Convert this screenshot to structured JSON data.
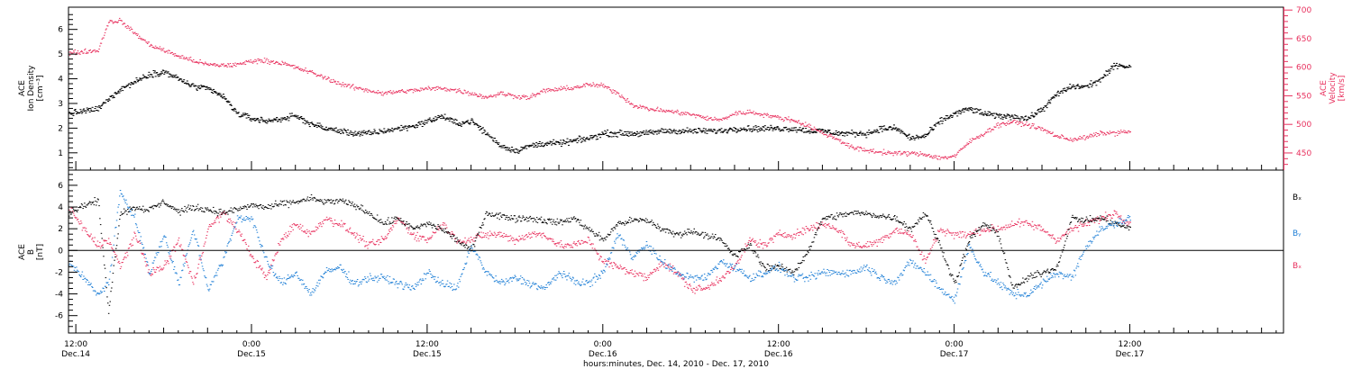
{
  "colors": {
    "black": "#000000",
    "pink": "#e8315e",
    "blue": "#1f7fd6",
    "axis": "#000000"
  },
  "xaxis": {
    "label": "hours:minutes, Dec. 14, 2010 - Dec. 17, 2010",
    "hours_range": [
      11.5,
      94.5
    ],
    "ticks": [
      {
        "hour": 12,
        "time": "12:00",
        "date": "Dec.14"
      },
      {
        "hour": 24,
        "time": "0:00",
        "date": "Dec.15"
      },
      {
        "hour": 36,
        "time": "12:00",
        "date": "Dec.15"
      },
      {
        "hour": 48,
        "time": "0:00",
        "date": "Dec.16"
      },
      {
        "hour": 60,
        "time": "12:00",
        "date": "Dec.16"
      },
      {
        "hour": 72,
        "time": "0:00",
        "date": "Dec.17"
      },
      {
        "hour": 84,
        "time": "12:00",
        "date": "Dec.17"
      }
    ]
  },
  "panel1": {
    "left_label": [
      "ACE",
      "Ion Density",
      "[cm⁻³]"
    ],
    "right_label": [
      "ACE",
      "Velocity",
      "[km/s]"
    ],
    "left_ticks": [
      "1",
      "2",
      "3",
      "4",
      "5",
      "6"
    ],
    "right_ticks": [
      "450",
      "500",
      "550",
      "600",
      "650",
      "700"
    ]
  },
  "panel2": {
    "left_label": [
      "ACE",
      "B",
      "[nT]"
    ],
    "left_ticks": [
      "-6",
      "-4",
      "-2",
      "0",
      "2",
      "4",
      "6"
    ],
    "legend": [
      "Bₓ",
      "Bᵧ",
      "Bₓ"
    ]
  },
  "chart_data": [
    {
      "type": "scatter",
      "title": "",
      "xlabel": "hours:minutes, Dec. 14, 2010 - Dec. 17, 2010",
      "x_units": "hours since Dec. 14, 2010 00:00",
      "ylim_left": [
        0.3,
        6.9
      ],
      "ylim_right": [
        420,
        705
      ],
      "series": [
        {
          "name": "Ion Density",
          "axis": "left",
          "color": "#000000",
          "x": [
            11.5,
            12.5,
            13.5,
            14.2,
            15,
            16,
            17,
            18,
            19,
            20,
            21,
            22,
            23,
            24,
            25,
            26,
            27,
            28,
            29,
            30,
            31,
            32,
            33,
            34,
            35,
            36,
            37,
            38,
            39,
            40,
            41,
            42,
            43,
            44,
            45,
            46,
            47,
            48,
            49,
            50,
            51,
            52,
            53,
            54,
            55,
            56,
            57,
            58,
            59,
            60,
            61,
            62,
            63,
            64,
            65,
            66,
            67,
            68,
            69,
            70,
            71,
            72,
            73,
            74,
            75,
            76,
            77,
            78,
            79,
            80,
            81,
            82,
            83,
            84
          ],
          "values": [
            2.6,
            2.7,
            2.8,
            3.2,
            3.6,
            3.9,
            4.2,
            4.3,
            4.0,
            3.7,
            3.6,
            3.3,
            2.6,
            2.4,
            2.3,
            2.4,
            2.5,
            2.2,
            2.0,
            1.9,
            1.8,
            1.8,
            1.9,
            2.0,
            2.1,
            2.3,
            2.5,
            2.2,
            2.3,
            1.8,
            1.3,
            1.1,
            1.3,
            1.4,
            1.4,
            1.5,
            1.6,
            1.8,
            1.8,
            1.8,
            1.8,
            1.9,
            1.9,
            1.9,
            1.9,
            1.9,
            2.0,
            2.0,
            2.0,
            2.0,
            2.0,
            1.9,
            1.9,
            1.8,
            1.8,
            1.8,
            2.0,
            2.0,
            1.6,
            1.7,
            2.3,
            2.6,
            2.8,
            2.6,
            2.5,
            2.5,
            2.4,
            2.8,
            3.4,
            3.7,
            3.7,
            4.0,
            4.6,
            4.5
          ]
        },
        {
          "name": "Velocity",
          "axis": "right",
          "color": "#e8315e",
          "x": [
            11.5,
            12.5,
            13.5,
            14.2,
            15,
            16,
            17,
            18,
            19,
            20,
            21,
            22,
            23,
            24,
            25,
            26,
            27,
            28,
            29,
            30,
            31,
            32,
            33,
            34,
            35,
            36,
            37,
            38,
            39,
            40,
            41,
            42,
            43,
            44,
            45,
            46,
            47,
            48,
            49,
            50,
            51,
            52,
            53,
            54,
            55,
            56,
            57,
            58,
            59,
            60,
            61,
            62,
            63,
            64,
            65,
            66,
            67,
            68,
            69,
            70,
            71,
            72,
            73,
            74,
            75,
            76,
            77,
            78,
            79,
            80,
            81,
            82,
            83,
            84
          ],
          "values": [
            625,
            628,
            630,
            680,
            682,
            660,
            640,
            630,
            620,
            612,
            605,
            604,
            605,
            612,
            612,
            608,
            600,
            592,
            582,
            572,
            565,
            560,
            555,
            558,
            560,
            563,
            564,
            560,
            555,
            548,
            555,
            550,
            548,
            560,
            562,
            565,
            570,
            568,
            555,
            535,
            528,
            525,
            522,
            518,
            512,
            508,
            520,
            522,
            518,
            512,
            508,
            498,
            485,
            475,
            460,
            455,
            452,
            450,
            450,
            448,
            442,
            445,
            470,
            485,
            500,
            505,
            500,
            492,
            480,
            474,
            478,
            485,
            486,
            488
          ]
        }
      ]
    },
    {
      "type": "scatter",
      "title": "",
      "xlabel": "hours:minutes, Dec. 14, 2010 - Dec. 17, 2010",
      "x_units": "hours since Dec. 14, 2010 00:00",
      "ylabel": "ACE B [nT]",
      "ylim": [
        -7.6,
        7.4
      ],
      "series": [
        {
          "name": "Bₓ",
          "color": "#000000",
          "x": [
            11.5,
            12.5,
            13.5,
            14.2,
            15,
            16,
            17,
            18,
            19,
            20,
            21,
            22,
            23,
            24,
            25,
            26,
            27,
            28,
            29,
            30,
            31,
            32,
            33,
            34,
            35,
            36,
            37,
            38,
            39,
            40,
            41,
            42,
            43,
            44,
            45,
            46,
            47,
            48,
            49,
            50,
            51,
            52,
            53,
            54,
            55,
            56,
            57,
            58,
            59,
            60,
            61,
            62,
            63,
            64,
            65,
            66,
            67,
            68,
            69,
            70,
            71,
            72,
            73,
            74,
            75,
            76,
            77,
            78,
            79,
            80,
            81,
            82,
            83,
            84
          ],
          "values": [
            3.5,
            4.2,
            4.6,
            -5.5,
            3.5,
            4.0,
            3.8,
            4.5,
            3.6,
            4.0,
            3.8,
            3.5,
            3.8,
            4.2,
            4.0,
            4.3,
            4.5,
            4.8,
            4.5,
            4.6,
            4.2,
            3.5,
            2.5,
            3.0,
            2.0,
            2.5,
            2.0,
            1.0,
            0.0,
            3.5,
            3.2,
            3.0,
            3.0,
            2.8,
            2.6,
            3.0,
            2.0,
            1.0,
            2.5,
            2.8,
            2.8,
            2.0,
            1.5,
            1.8,
            1.5,
            1.0,
            -0.5,
            0.5,
            -1.5,
            -1.5,
            -2.0,
            0.0,
            3.0,
            3.2,
            3.5,
            3.4,
            3.2,
            3.0,
            2.0,
            3.5,
            0.5,
            -3.0,
            1.0,
            2.5,
            1.5,
            -3.5,
            -2.5,
            -2.0,
            -1.5,
            3.0,
            2.8,
            3.0,
            2.5,
            2.0
          ]
        },
        {
          "name": "Bᵧ",
          "color": "#1f7fd6",
          "x": [
            11.5,
            12.5,
            13.5,
            14.2,
            15,
            16,
            17,
            18,
            19,
            20,
            21,
            22,
            23,
            24,
            25,
            26,
            27,
            28,
            29,
            30,
            31,
            32,
            33,
            34,
            35,
            36,
            37,
            38,
            39,
            40,
            41,
            42,
            43,
            44,
            45,
            46,
            47,
            48,
            49,
            50,
            51,
            52,
            53,
            54,
            55,
            56,
            57,
            58,
            59,
            60,
            61,
            62,
            63,
            64,
            65,
            66,
            67,
            68,
            69,
            70,
            71,
            72,
            73,
            74,
            75,
            76,
            77,
            78,
            79,
            80,
            81,
            82,
            83,
            84
          ],
          "values": [
            -1.0,
            -2.5,
            -4.0,
            -3.0,
            5.5,
            3.0,
            -2.0,
            1.5,
            -3.0,
            2.0,
            -3.5,
            -1.0,
            3.0,
            3.0,
            -1.0,
            -3.0,
            -2.0,
            -4.0,
            -2.0,
            -1.5,
            -3.0,
            -2.5,
            -2.5,
            -3.0,
            -3.5,
            -2.0,
            -3.0,
            -3.5,
            0.5,
            -2.0,
            -3.0,
            -2.5,
            -3.0,
            -3.5,
            -2.0,
            -2.8,
            -3.0,
            -2.0,
            1.5,
            -0.5,
            0.5,
            -1.0,
            -2.0,
            -2.5,
            -2.5,
            -1.0,
            -1.5,
            -2.5,
            -2.0,
            -1.5,
            -2.5,
            -2.5,
            -2.0,
            -2.0,
            -2.0,
            -1.5,
            -2.5,
            -2.8,
            -1.0,
            -2.0,
            -3.5,
            -4.5,
            0.5,
            -2.0,
            -3.0,
            -4.0,
            -4.0,
            -3.0,
            -2.0,
            -2.5,
            0.5,
            2.0,
            2.5,
            3.0
          ]
        },
        {
          "name": "Bₓ",
          "color": "#e8315e",
          "x": [
            11.5,
            12.5,
            13.5,
            14.2,
            15,
            16,
            17,
            18,
            19,
            20,
            21,
            22,
            23,
            24,
            25,
            26,
            27,
            28,
            29,
            30,
            31,
            32,
            33,
            34,
            35,
            36,
            37,
            38,
            39,
            40,
            41,
            42,
            43,
            44,
            45,
            46,
            47,
            48,
            49,
            50,
            51,
            52,
            53,
            54,
            55,
            56,
            57,
            58,
            59,
            60,
            61,
            62,
            63,
            64,
            65,
            66,
            67,
            68,
            69,
            70,
            71,
            72,
            73,
            74,
            75,
            76,
            77,
            78,
            79,
            80,
            81,
            82,
            83,
            84
          ],
          "values": [
            4.0,
            2.0,
            0.5,
            1.0,
            -1.5,
            1.5,
            -2.0,
            -1.5,
            1.0,
            -3.0,
            2.0,
            3.5,
            2.0,
            -0.5,
            -2.5,
            1.0,
            2.5,
            1.5,
            3.0,
            2.5,
            1.5,
            0.5,
            1.0,
            3.0,
            1.5,
            1.0,
            2.5,
            1.0,
            1.0,
            1.5,
            1.5,
            1.0,
            1.5,
            1.5,
            0.5,
            0.5,
            1.0,
            -1.0,
            -1.5,
            -2.0,
            -2.5,
            -1.0,
            -2.0,
            -3.5,
            -3.5,
            -2.5,
            -1.5,
            1.0,
            0.5,
            1.5,
            1.5,
            2.0,
            2.5,
            2.0,
            0.5,
            0.5,
            1.0,
            2.0,
            1.5,
            -1.0,
            2.0,
            1.5,
            1.5,
            2.0,
            2.0,
            2.5,
            2.5,
            2.0,
            1.0,
            2.0,
            2.5,
            3.0,
            3.5,
            2.5
          ]
        }
      ]
    }
  ]
}
